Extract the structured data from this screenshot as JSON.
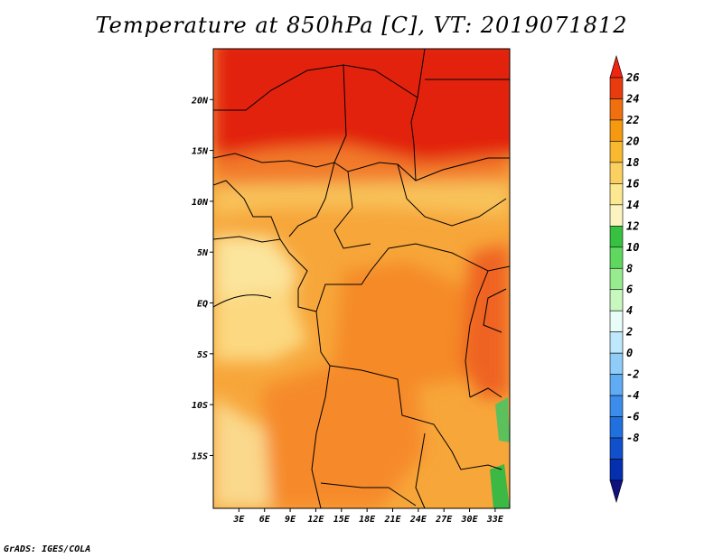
{
  "title": "Temperature at 850hPa [C], VT: 2019071812",
  "credit": "GrADS: IGES/COLA",
  "map": {
    "lon_range": [
      0,
      34.7
    ],
    "lat_range": [
      -20.2,
      25
    ],
    "lat_ticks": [
      {
        "value": 20,
        "label": "20N"
      },
      {
        "value": 15,
        "label": "15N"
      },
      {
        "value": 10,
        "label": "10N"
      },
      {
        "value": 5,
        "label": "5N"
      },
      {
        "value": 0,
        "label": "EQ"
      },
      {
        "value": -5,
        "label": "5S"
      },
      {
        "value": -10,
        "label": "10S"
      },
      {
        "value": -15,
        "label": "15S"
      }
    ],
    "lon_ticks": [
      {
        "value": 3,
        "label": "3E"
      },
      {
        "value": 6,
        "label": "6E"
      },
      {
        "value": 9,
        "label": "9E"
      },
      {
        "value": 12,
        "label": "12E"
      },
      {
        "value": 15,
        "label": "15E"
      },
      {
        "value": 18,
        "label": "18E"
      },
      {
        "value": 21,
        "label": "21E"
      },
      {
        "value": 24,
        "label": "24E"
      },
      {
        "value": 27,
        "label": "27E"
      },
      {
        "value": 30,
        "label": "30E"
      },
      {
        "value": 33,
        "label": "33E"
      }
    ]
  },
  "colorbar": {
    "labels": [
      "26",
      "24",
      "22",
      "20",
      "18",
      "16",
      "14",
      "12",
      "10",
      "8",
      "6",
      "4",
      "2",
      "0",
      "-2",
      "-4",
      "-6",
      "-8"
    ],
    "colors": [
      "#f02410",
      "#e83c10",
      "#f07010",
      "#f59a10",
      "#f8b830",
      "#fad060",
      "#fce890",
      "#fcf4c0",
      "#38c040",
      "#60d860",
      "#98ec90",
      "#c8f8c0",
      "#e8fcf8",
      "#c0e8fc",
      "#90ccf8",
      "#60acf4",
      "#3c8cec",
      "#2070e0",
      "#1050cc",
      "#0430b0",
      "#101080"
    ]
  }
}
